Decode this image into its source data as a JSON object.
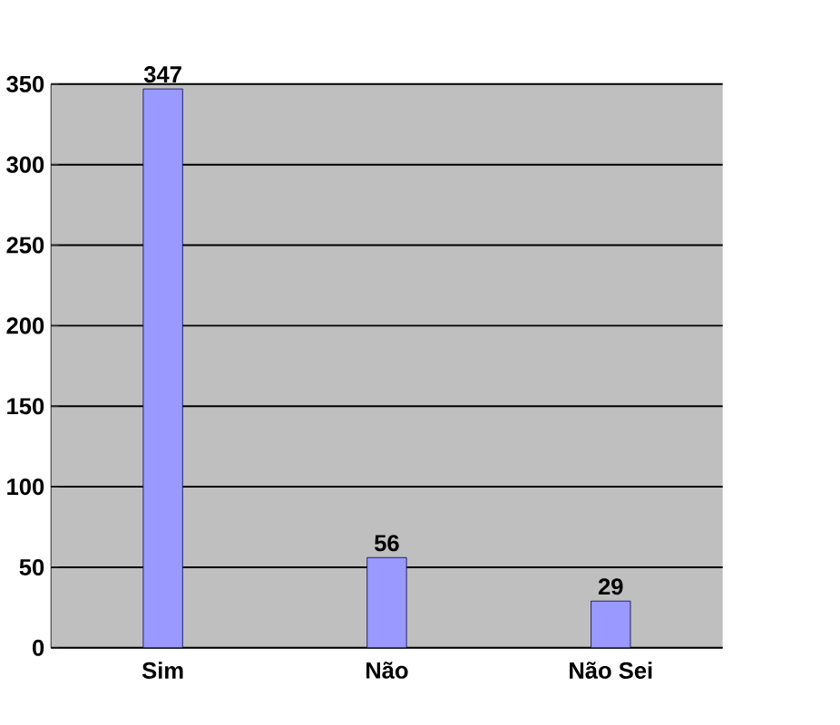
{
  "chart_data": {
    "type": "bar",
    "categories": [
      "Sim",
      "Não",
      "Não Sei"
    ],
    "values": [
      347,
      56,
      29
    ],
    "color": "#9999ff",
    "ylim": [
      0,
      350
    ],
    "yticks": [
      0,
      50,
      100,
      150,
      200,
      250,
      300,
      350
    ],
    "grid": "y",
    "data_labels": true
  }
}
